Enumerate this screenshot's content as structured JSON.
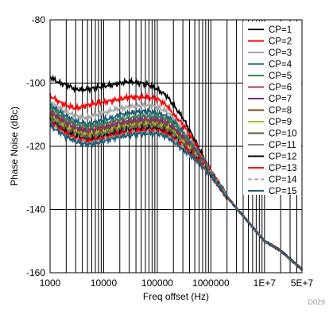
{
  "figure_id": "D029",
  "chart_data": {
    "type": "line",
    "title": "",
    "xlabel": "Freq offset (Hz)",
    "ylabel": "Phase Noise (dBc)",
    "x_scale": "log",
    "xlim": [
      1000,
      50000000
    ],
    "ylim": [
      -160,
      -80
    ],
    "x_tick_labels": [
      "1000",
      "10000",
      "100000",
      "1000000",
      "1E+7",
      "5E+7"
    ],
    "x_tick_values": [
      1000,
      10000,
      100000,
      1000000,
      10000000,
      50000000
    ],
    "y_tick_labels": [
      "-80",
      "-100",
      "-120",
      "-140",
      "-160"
    ],
    "y_tick_values": [
      -80,
      -100,
      -120,
      -140,
      -160
    ],
    "grid": true,
    "legend_position": "top-right",
    "x": [
      1000,
      1500,
      2000,
      3000,
      5000,
      7000,
      10000,
      15000,
      20000,
      30000,
      50000,
      70000,
      100000,
      150000,
      200000,
      300000,
      500000,
      700000,
      1000000,
      2000000,
      5000000,
      10000000,
      20000000,
      50000000
    ],
    "series": [
      {
        "name": "CP=1",
        "color": "#000000",
        "values": [
          -98,
          -100,
          -100.5,
          -102,
          -102,
          -101.5,
          -101,
          -100.5,
          -100,
          -99.5,
          -100,
          -100.5,
          -102,
          -104,
          -107,
          -111,
          -118,
          -123,
          -128,
          -136,
          -144,
          -150,
          -153,
          -159
        ]
      },
      {
        "name": "CP=2",
        "color": "#ff0000",
        "values": [
          -104,
          -106,
          -107,
          -108,
          -107,
          -106.5,
          -106,
          -105.5,
          -105,
          -104.5,
          -104.5,
          -104.5,
          -105,
          -107,
          -110,
          -113,
          -119,
          -123.5,
          -128,
          -136,
          -144,
          -150,
          -153,
          -159
        ]
      },
      {
        "name": "CP=3",
        "color": "#a6a6a6",
        "values": [
          -106,
          -108,
          -109,
          -110.5,
          -111,
          -110,
          -109.5,
          -108.5,
          -108,
          -107.5,
          -107,
          -107,
          -107.5,
          -109,
          -111,
          -115,
          -120,
          -124,
          -128,
          -136,
          -144,
          -150,
          -153,
          -159
        ]
      },
      {
        "name": "CP=4",
        "color": "#1f5f7a",
        "values": [
          -107,
          -109,
          -110.5,
          -112,
          -113,
          -112.5,
          -111.5,
          -111,
          -110,
          -109.5,
          -109,
          -109,
          -109.5,
          -110.5,
          -112,
          -115.5,
          -120.5,
          -124,
          -128,
          -136,
          -144,
          -150,
          -153,
          -159
        ]
      },
      {
        "name": "CP=5",
        "color": "#2e8b57",
        "values": [
          -108,
          -110,
          -111.5,
          -113,
          -114,
          -113.5,
          -113,
          -112,
          -111.5,
          -111,
          -110.5,
          -110.5,
          -110.5,
          -111.5,
          -113,
          -116,
          -121,
          -124.5,
          -128,
          -136,
          -144,
          -150,
          -153,
          -159
        ]
      },
      {
        "name": "CP=6",
        "color": "#b03060",
        "values": [
          -109,
          -111,
          -112.5,
          -114,
          -115,
          -114.5,
          -114,
          -113,
          -112.5,
          -112,
          -111.5,
          -111.5,
          -111.5,
          -112.5,
          -114,
          -117,
          -121.5,
          -124.5,
          -128,
          -136,
          -144,
          -150,
          -153,
          -159
        ]
      },
      {
        "name": "CP=7",
        "color": "#6a2c91",
        "values": [
          -109.5,
          -111.5,
          -113,
          -114.5,
          -115.5,
          -115,
          -114.5,
          -113.5,
          -113,
          -112.5,
          -112,
          -112,
          -112,
          -113,
          -114.5,
          -117.5,
          -121.5,
          -125,
          -128.5,
          -136,
          -144,
          -150,
          -153,
          -159
        ]
      },
      {
        "name": "CP=8",
        "color": "#7a4a1c",
        "values": [
          -110,
          -112,
          -113.5,
          -115,
          -116,
          -115.5,
          -115,
          -114,
          -113.5,
          -113,
          -112.5,
          -112.5,
          -112.5,
          -113.5,
          -115,
          -118,
          -122,
          -125,
          -128.5,
          -136,
          -144,
          -150,
          -153,
          -159
        ]
      },
      {
        "name": "CP=9",
        "color": "#b8b82e",
        "values": [
          -110.5,
          -112.5,
          -114,
          -115.5,
          -116.5,
          -116,
          -115.5,
          -114.5,
          -114,
          -113.5,
          -113,
          -113,
          -113,
          -114,
          -115.5,
          -118.5,
          -122.5,
          -125.5,
          -128.5,
          -136,
          -144,
          -150,
          -153,
          -159
        ]
      },
      {
        "name": "CP=10",
        "color": "#4f5f2a",
        "values": [
          -111,
          -113,
          -114.5,
          -116,
          -117,
          -116.5,
          -116,
          -115,
          -114.5,
          -114,
          -113.5,
          -113.5,
          -113.5,
          -114.5,
          -116,
          -119,
          -123,
          -125.5,
          -128.5,
          -136,
          -144,
          -150,
          -153,
          -159
        ]
      },
      {
        "name": "CP=11",
        "color": "#7f7f7f",
        "values": [
          -111.5,
          -113.5,
          -115,
          -116.5,
          -117.5,
          -117,
          -116.5,
          -115.5,
          -115,
          -114.5,
          -114,
          -114,
          -114,
          -115,
          -116.5,
          -119.5,
          -123,
          -126,
          -128.5,
          -136,
          -144,
          -150,
          -153,
          -159
        ]
      },
      {
        "name": "CP=12",
        "color": "#000000",
        "values": [
          -112,
          -114,
          -115.5,
          -117,
          -118,
          -117.5,
          -117,
          -116,
          -115.5,
          -115,
          -114.5,
          -114.5,
          -114.5,
          -115.5,
          -117,
          -120,
          -123.5,
          -126,
          -129,
          -136,
          -144,
          -150,
          -153,
          -159
        ]
      },
      {
        "name": "CP=13",
        "color": "#ff0000",
        "values": [
          -112.5,
          -114.5,
          -116,
          -117.5,
          -118.5,
          -118,
          -117.5,
          -116.5,
          -116,
          -115.5,
          -115,
          -115,
          -115,
          -116,
          -117.5,
          -120,
          -123.5,
          -126,
          -129,
          -136,
          -144,
          -150,
          -153,
          -159
        ]
      },
      {
        "name": "CP=14",
        "color": "#a6a6a6",
        "values": [
          -113,
          -115,
          -116.5,
          -118,
          -119,
          -118.5,
          -118,
          -117,
          -116.5,
          -116,
          -115.5,
          -115.5,
          -115.5,
          -116.5,
          -118,
          -120.5,
          -124,
          -126.5,
          -129,
          -136,
          -144,
          -150,
          -153,
          -159
        ]
      },
      {
        "name": "CP=15",
        "color": "#1f5f7a",
        "values": [
          -113.5,
          -115.5,
          -117,
          -118.5,
          -119.5,
          -119,
          -118.5,
          -117.5,
          -117,
          -116.5,
          -116,
          -116,
          -116,
          -117,
          -118.5,
          -121,
          -124,
          -126.5,
          -129,
          -136,
          -144,
          -150,
          -153,
          -159
        ]
      }
    ]
  }
}
